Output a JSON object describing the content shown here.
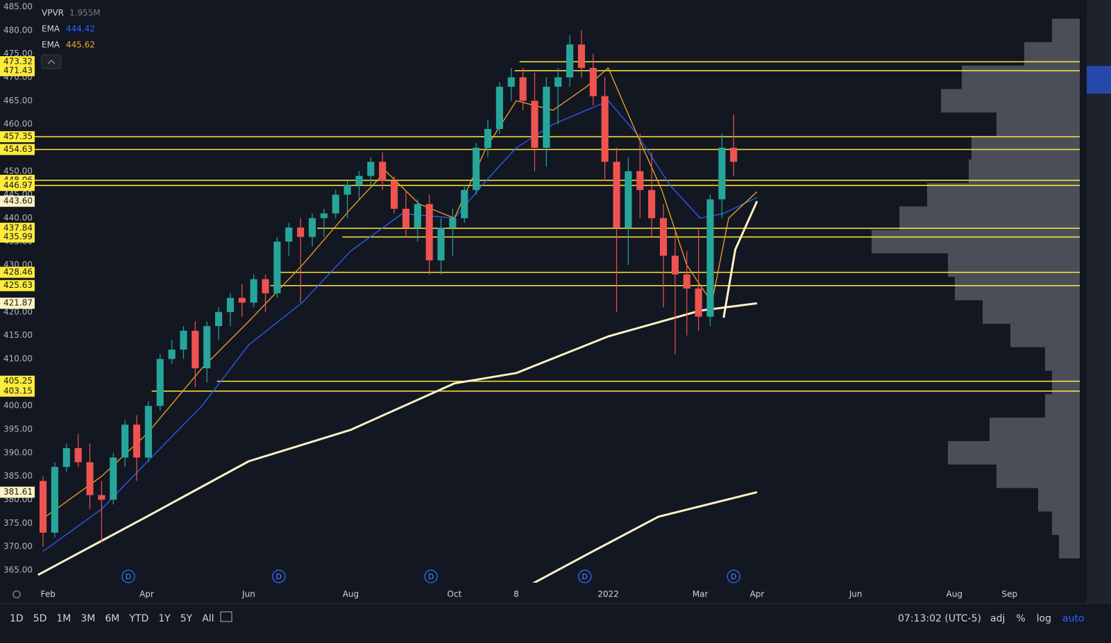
{
  "chart_data": {
    "type": "candlestick",
    "legend": [
      {
        "name": "VPVR",
        "value": "1.955M"
      }
    ],
    "ylim": [
      365,
      485
    ],
    "yticks": [
      {
        "value": 365,
        "label": "365.00"
      },
      {
        "value": 370,
        "label": "370.00"
      },
      {
        "value": 375,
        "label": "375.00"
      },
      {
        "value": 380,
        "label": "380.00"
      },
      {
        "value": 385,
        "label": "385.00"
      },
      {
        "value": 390,
        "label": "390.00"
      },
      {
        "value": 395,
        "label": "395.00"
      },
      {
        "value": 400,
        "label": "400.00"
      },
      {
        "value": 405,
        "label": "405.00"
      },
      {
        "value": 410,
        "label": "410.00"
      },
      {
        "value": 415,
        "label": "415.00"
      },
      {
        "value": 420,
        "label": "420.00"
      },
      {
        "value": 425,
        "label": "425.00"
      },
      {
        "value": 430,
        "label": "430.00"
      },
      {
        "value": 435,
        "label": "435.00"
      },
      {
        "value": 440,
        "label": "440.00"
      },
      {
        "value": 445,
        "label": "445.00"
      },
      {
        "value": 450,
        "label": "450.00"
      },
      {
        "value": 455,
        "label": "455.00"
      },
      {
        "value": 460,
        "label": "460.00"
      },
      {
        "value": 465,
        "label": "465.00"
      },
      {
        "value": 470,
        "label": "470.00"
      },
      {
        "value": 475,
        "label": "475.00"
      },
      {
        "value": 480,
        "label": "480.00"
      },
      {
        "value": 485,
        "label": "485.00"
      }
    ],
    "xlim": [
      0,
      625
    ],
    "xticks": [
      {
        "value": 8,
        "label": "Feb"
      },
      {
        "value": 67,
        "label": "Apr"
      },
      {
        "value": 128,
        "label": "Jun"
      },
      {
        "value": 189,
        "label": "Aug"
      },
      {
        "value": 251,
        "label": "Oct"
      },
      {
        "value": 288,
        "label": "8"
      },
      {
        "value": 343,
        "label": "2022"
      },
      {
        "value": 398,
        "label": "Mar"
      },
      {
        "value": 432,
        "label": "Apr"
      },
      {
        "value": 491,
        "label": "Jun"
      },
      {
        "value": 550,
        "label": "Aug"
      },
      {
        "value": 583,
        "label": "Sep"
      }
    ],
    "up_color": "#26a69a",
    "down_color": "#ef5350",
    "x": [
      5,
      12,
      19,
      26,
      33,
      40,
      47,
      54,
      61,
      68,
      75,
      82,
      89,
      96,
      103,
      110,
      117,
      124,
      131,
      138,
      145,
      152,
      159,
      166,
      173,
      180,
      187,
      194,
      201,
      208,
      215,
      222,
      229,
      236,
      243,
      250,
      257,
      264,
      271,
      278,
      285,
      292,
      299,
      306,
      313,
      320,
      327,
      334,
      341,
      348,
      355,
      362,
      369,
      376,
      383,
      390,
      397,
      404,
      411,
      418
    ],
    "open": [
      384,
      373,
      387,
      391,
      388,
      381,
      380,
      389,
      396,
      389,
      400,
      410,
      412,
      416,
      408,
      417,
      420,
      423,
      422,
      427,
      424,
      435,
      438,
      436,
      440,
      441,
      445,
      447,
      449,
      452,
      448,
      442,
      438,
      443,
      431,
      438,
      440,
      446,
      455,
      459,
      468,
      470,
      465,
      455,
      468,
      470,
      477,
      472,
      466,
      452,
      438,
      450,
      446,
      440,
      432,
      428,
      425,
      419,
      444,
      455
    ],
    "high": [
      385,
      388,
      392,
      394,
      392,
      384,
      390,
      397,
      398,
      401,
      411,
      414,
      417,
      418,
      418,
      421,
      424,
      426,
      428,
      428,
      436,
      439,
      440,
      441,
      442,
      446,
      448,
      450,
      453,
      454,
      449,
      446,
      444,
      445,
      440,
      442,
      447,
      456,
      461,
      469,
      472,
      472,
      471,
      470,
      472,
      479,
      480,
      475,
      470,
      455,
      453,
      458,
      454,
      443,
      437,
      433,
      438,
      445,
      458,
      462
    ],
    "low": [
      370,
      372,
      386,
      387,
      378,
      371,
      379,
      387,
      384,
      388,
      399,
      409,
      410,
      404,
      405,
      414,
      417,
      419,
      421,
      420,
      423,
      432,
      422,
      434,
      436,
      440,
      440,
      444,
      447,
      446,
      441,
      436,
      435,
      428,
      428,
      432,
      439,
      445,
      453,
      458,
      465,
      463,
      450,
      451,
      460,
      468,
      470,
      464,
      448,
      420,
      430,
      440,
      436,
      421,
      411,
      415,
      416,
      417,
      440,
      449
    ],
    "close": [
      373,
      387,
      391,
      388,
      381,
      380,
      389,
      396,
      389,
      400,
      410,
      412,
      416,
      408,
      417,
      420,
      423,
      422,
      427,
      424,
      435,
      438,
      436,
      440,
      441,
      445,
      447,
      449,
      452,
      448,
      442,
      438,
      443,
      431,
      438,
      440,
      446,
      455,
      459,
      468,
      470,
      465,
      455,
      468,
      470,
      477,
      472,
      466,
      452,
      438,
      450,
      446,
      440,
      432,
      428,
      425,
      419,
      444,
      455,
      452
    ],
    "lines": [
      {
        "name": "EMA",
        "color": "#2962ff",
        "x": [
          5,
          40,
          67,
          100,
          128,
          160,
          189,
          220,
          251,
          270,
          288,
          310,
          330,
          343,
          360,
          380,
          398,
          412,
          432
        ],
        "values": [
          369,
          378,
          388,
          400,
          413,
          422,
          433,
          441,
          440,
          448,
          455,
          460,
          463,
          465,
          458,
          447,
          440,
          441,
          444.42
        ]
      },
      {
        "name": "EMA",
        "color": "#f5a623",
        "x": [
          5,
          40,
          67,
          100,
          128,
          160,
          189,
          210,
          230,
          251,
          270,
          288,
          310,
          330,
          343,
          360,
          375,
          390,
          405,
          415,
          432
        ],
        "values": [
          376,
          385,
          394,
          408,
          418,
          430,
          442,
          450,
          443,
          440,
          455,
          465,
          463,
          468,
          472,
          458,
          446,
          430,
          422,
          440,
          445.62
        ]
      },
      {
        "color": "#fff3c4",
        "x": [
          2,
          67,
          128,
          189,
          251,
          288,
          343,
          398,
          432
        ],
        "values": [
          364,
          376.4,
          388.2,
          394.9,
          404.8,
          407,
          414.8,
          420.3,
          421.87
        ]
      },
      {
        "color": "#fff3c4",
        "x": [
          295,
          330,
          373,
          432
        ],
        "values": [
          361.6,
          368.3,
          376.4,
          381.61
        ]
      },
      {
        "color": "#fff3c4",
        "x": [
          412,
          419,
          432
        ],
        "values": [
          418.8,
          433.3,
          443.6
        ]
      }
    ],
    "levels": [
      {
        "value": 473.32,
        "start": 290
      },
      {
        "value": 471.43,
        "start": 287
      },
      {
        "value": 457.35,
        "start": 0
      },
      {
        "value": 454.63,
        "start": 0
      },
      {
        "value": 448.06,
        "start": 0
      },
      {
        "value": 446.97,
        "start": 0
      },
      {
        "value": 437.84,
        "start": 169
      },
      {
        "value": 435.99,
        "start": 184
      },
      {
        "value": 428.46,
        "start": 146
      },
      {
        "value": 425.63,
        "start": 141
      },
      {
        "value": 405.25,
        "start": 109
      },
      {
        "value": 403.15,
        "start": 70
      }
    ],
    "level_color": "#ffeb3b",
    "line_labels": [
      {
        "value": 443.6,
        "label": "443.60"
      },
      {
        "value": 421.87,
        "label": "421.87"
      },
      {
        "value": 381.61,
        "label": "381.61"
      }
    ],
    "volume_profile": {
      "prices": [
        365,
        370,
        375,
        380,
        385,
        390,
        395,
        400,
        405,
        410,
        415,
        420,
        425,
        430,
        435,
        440,
        445,
        450,
        455,
        460,
        465,
        470,
        475,
        480
      ],
      "values": [
        0,
        30,
        40,
        60,
        120,
        190,
        130,
        50,
        40,
        50,
        100,
        140,
        180,
        190,
        300,
        260,
        220,
        160,
        156,
        120,
        200,
        170,
        80,
        40
      ]
    },
    "events": {
      "label": "D",
      "x": [
        56,
        146,
        237,
        329,
        418
      ]
    },
    "toolbar": {
      "ranges": [
        "1D",
        "5D",
        "1M",
        "3M",
        "6M",
        "YTD",
        "1Y",
        "5Y",
        "All"
      ],
      "clock": "07:13:02 (UTC-5)",
      "options": [
        "adj",
        "%",
        "log",
        "auto"
      ]
    }
  }
}
